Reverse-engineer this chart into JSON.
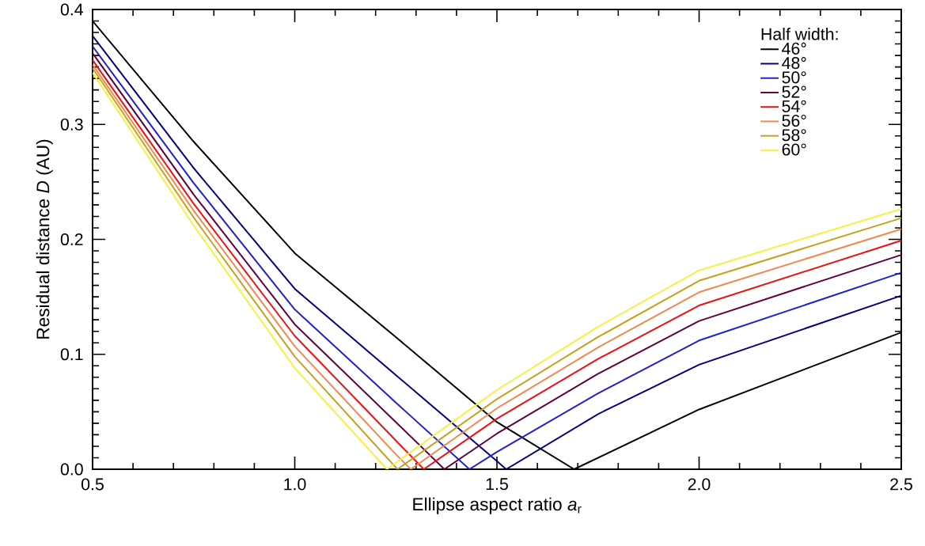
{
  "chart_data": {
    "type": "line",
    "xlabel": "Ellipse aspect ratio *a*$_{r}$",
    "ylabel": "Residual distance *D* (AU)",
    "legend_title": "Half width:",
    "legend": "top right",
    "marker": "none",
    "line_style": "solid",
    "grid": false,
    "xlim": [
      0.5,
      2.5
    ],
    "ylim": [
      0,
      0.4
    ],
    "xticks": [
      {
        "value": 0.5,
        "label": "0.5"
      },
      {
        "value": 1.0,
        "label": "1.0"
      },
      {
        "value": 1.5,
        "label": "1.5"
      },
      {
        "value": 2.0,
        "label": "2.0"
      },
      {
        "value": 2.5,
        "label": "2.5"
      }
    ],
    "yticks": [
      {
        "value": 0,
        "label": "0.0"
      },
      {
        "value": 0.1,
        "label": "0.1"
      },
      {
        "value": 0.2,
        "label": "0.2"
      },
      {
        "value": 0.3,
        "label": "0.3"
      },
      {
        "value": 0.4,
        "label": "0.4"
      }
    ],
    "series": [
      {
        "name": "46°",
        "color": "#000000",
        "x": [
          0.5,
          0.75,
          1.0,
          1.25,
          1.5,
          1.691,
          2.0,
          2.5
        ],
        "values": [
          0.39,
          0.285,
          0.188,
          0.115,
          0.041,
          0,
          0.052,
          0.119
        ]
      },
      {
        "name": "48°",
        "color": "#000080",
        "x": [
          0.5,
          0.75,
          1.0,
          1.25,
          1.5,
          1.523,
          1.75,
          2.0,
          2.5
        ],
        "values": [
          0.377,
          0.262,
          0.157,
          0.082,
          0.007,
          0,
          0.048,
          0.091,
          0.151
        ]
      },
      {
        "name": "50°",
        "color": "#2020d0",
        "x": [
          0.5,
          0.75,
          1.0,
          1.25,
          1.432,
          1.5,
          1.75,
          2.0,
          2.5
        ],
        "values": [
          0.368,
          0.249,
          0.139,
          0.058,
          0,
          0.015,
          0.066,
          0.112,
          0.171
        ]
      },
      {
        "name": "52°",
        "color": "#600040",
        "x": [
          0.5,
          0.75,
          1.0,
          1.25,
          1.37,
          1.5,
          1.75,
          2.0,
          2.5
        ],
        "values": [
          0.362,
          0.239,
          0.126,
          0.041,
          0,
          0.031,
          0.083,
          0.129,
          0.1865
        ]
      },
      {
        "name": "54°",
        "color": "#ee1010",
        "x": [
          0.5,
          0.75,
          1.0,
          1.25,
          1.319,
          1.5,
          1.75,
          2.0,
          2.5
        ],
        "values": [
          0.356,
          0.231,
          0.116,
          0.025,
          0,
          0.044,
          0.096,
          0.1425,
          0.199
        ]
      },
      {
        "name": "56°",
        "color": "#f08850",
        "x": [
          0.5,
          0.75,
          1.0,
          1.25,
          1.287,
          1.5,
          1.75,
          2.0,
          2.5
        ],
        "values": [
          0.352,
          0.225,
          0.107,
          0.013,
          0,
          0.053,
          0.106,
          0.154,
          0.209
        ]
      },
      {
        "name": "58°",
        "color": "#c8a020",
        "x": [
          0.5,
          0.75,
          1.0,
          1.254,
          1.5,
          1.75,
          2.0,
          2.5
        ],
        "values": [
          0.349,
          0.219,
          0.098,
          0,
          0.061,
          0.115,
          0.164,
          0.2185
        ]
      },
      {
        "name": "60°",
        "color": "#f8f040",
        "x": [
          0.5,
          0.75,
          1.0,
          1.228,
          1.5,
          1.75,
          2.0,
          2.5
        ],
        "values": [
          0.345,
          0.212,
          0.088,
          0,
          0.069,
          0.124,
          0.173,
          0.2265
        ]
      }
    ]
  }
}
